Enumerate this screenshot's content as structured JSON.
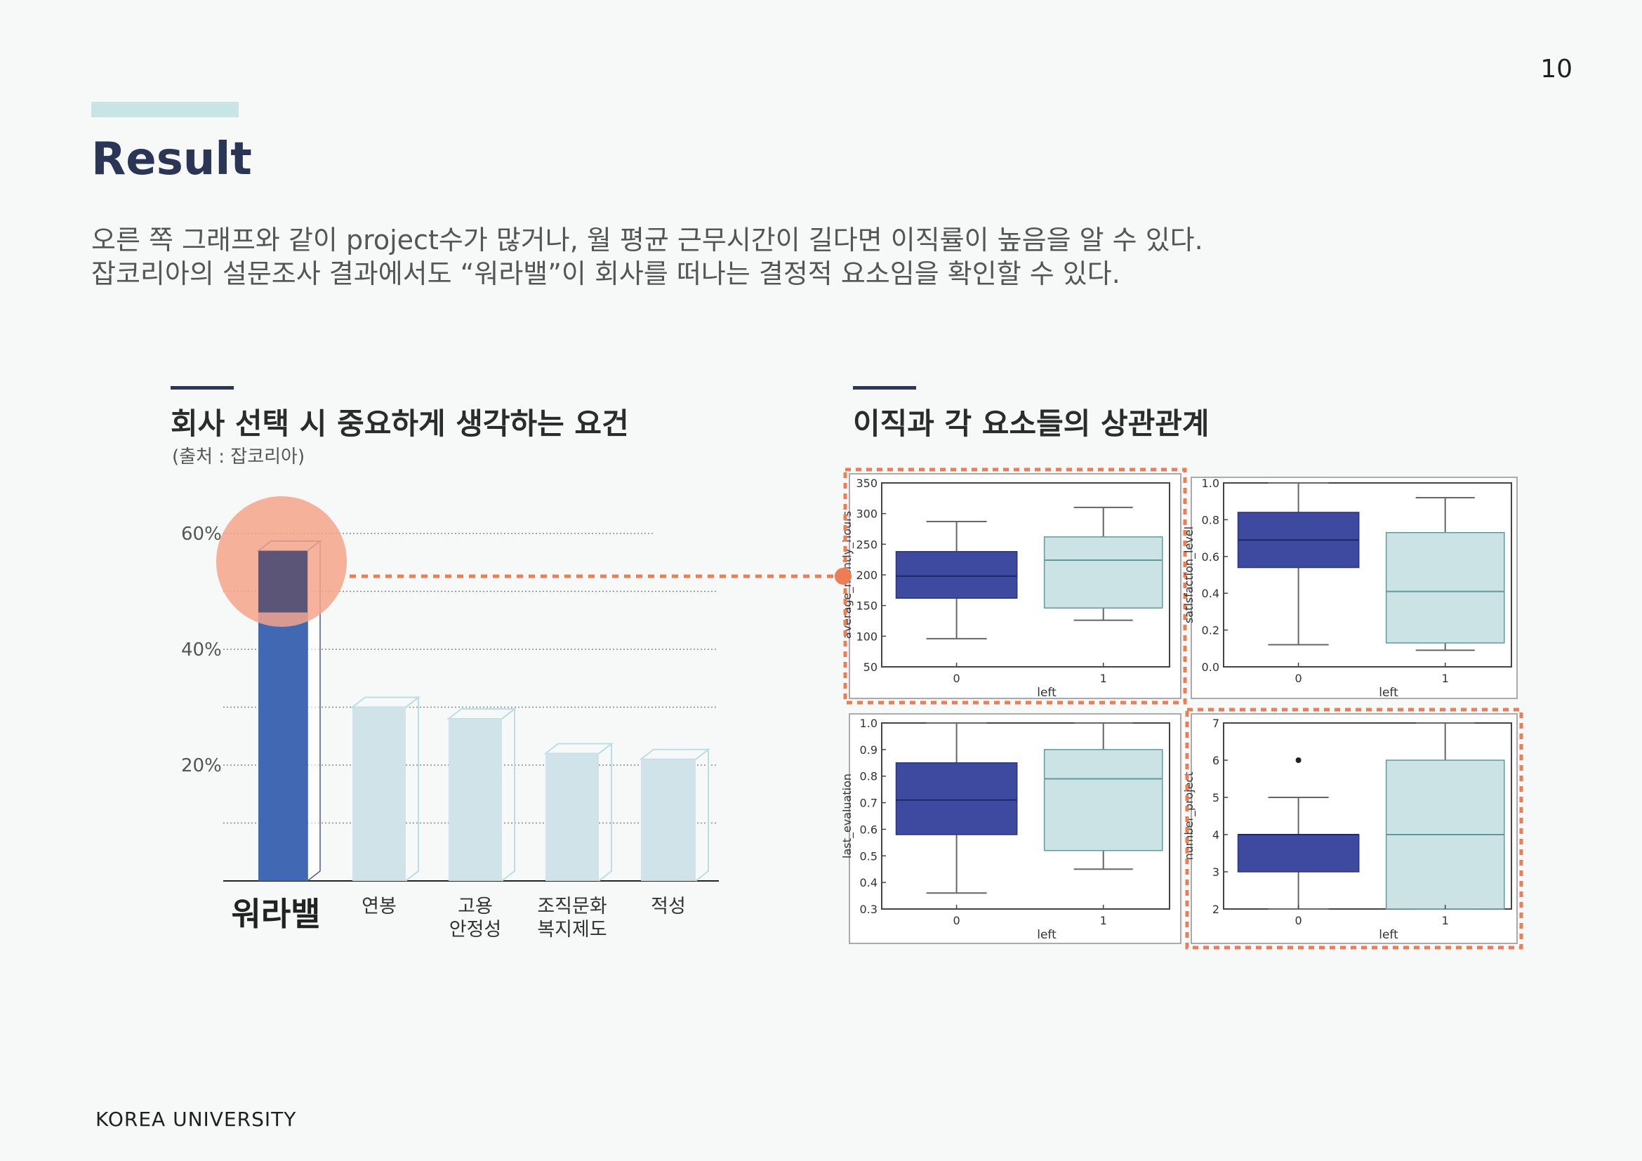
{
  "page_number": "10",
  "title": "Result",
  "description": {
    "line1": "오른 쪽 그래프와 같이 project수가 많거나, 월 평균 근무시간이 길다면 이직률이 높음을 알 수 있다.",
    "line2": "잡코리아의 설문조사 결과에서도 “워라밸”이 회사를 떠나는 결정적 요소임을 확인할 수 있다."
  },
  "left_section": {
    "title": "회사 선택 시 중요하게 생각하는 요건",
    "source": "(출처 : 잡코리아)"
  },
  "right_section": {
    "title": "이직과 각 요소들의 상관관계"
  },
  "footer": "KOREA UNIVERSITY",
  "colors": {
    "highlight_bar": "#4169b3",
    "other_bars": "#cfe3e8",
    "circle": "#f4a588",
    "dotted_connector": "#ef7d54",
    "box_left0": "#3d4aa0",
    "box_left1": "#cce3e6",
    "title": "#2b3555"
  },
  "chart_data": [
    {
      "type": "bar",
      "title": "회사 선택 시 중요하게 생각하는 요건",
      "categories": [
        "워라밸",
        "연봉",
        "고용\n안정성",
        "조직문화\n복지제도",
        "적성"
      ],
      "values": [
        57,
        30,
        28,
        22,
        21
      ],
      "yticks": [
        "20%",
        "40%",
        "60%"
      ],
      "ylim": [
        0,
        60
      ],
      "highlight": "워라밸"
    },
    {
      "type": "box",
      "xlabel": "left",
      "ylabel": "average_montly_hours",
      "categories": [
        "0",
        "1"
      ],
      "yticks": [
        "50",
        "100",
        "150",
        "200",
        "250",
        "300",
        "350"
      ],
      "ylim": [
        50,
        350
      ],
      "boxes": [
        {
          "min": 96,
          "q1": 162,
          "median": 198,
          "q3": 238,
          "max": 287
        },
        {
          "min": 126,
          "q1": 146,
          "median": 224,
          "q3": 262,
          "max": 310
        }
      ],
      "highlighted": true
    },
    {
      "type": "box",
      "xlabel": "left",
      "ylabel": "satisfaction_level",
      "categories": [
        "0",
        "1"
      ],
      "yticks": [
        "0.0",
        "0.2",
        "0.4",
        "0.6",
        "0.8",
        "1.0"
      ],
      "ylim": [
        0,
        1
      ],
      "boxes": [
        {
          "min": 0.12,
          "q1": 0.54,
          "median": 0.69,
          "q3": 0.84,
          "max": 1.0
        },
        {
          "min": 0.09,
          "q1": 0.13,
          "median": 0.41,
          "q3": 0.73,
          "max": 0.92
        }
      ],
      "highlighted": false
    },
    {
      "type": "box",
      "xlabel": "left",
      "ylabel": "last_evaluation",
      "categories": [
        "0",
        "1"
      ],
      "yticks": [
        "0.3",
        "0.4",
        "0.5",
        "0.6",
        "0.7",
        "0.8",
        "0.9",
        "1.0"
      ],
      "ylim": [
        0.3,
        1.0
      ],
      "boxes": [
        {
          "min": 0.36,
          "q1": 0.58,
          "median": 0.71,
          "q3": 0.85,
          "max": 1.0
        },
        {
          "min": 0.45,
          "q1": 0.52,
          "median": 0.79,
          "q3": 0.9,
          "max": 1.0
        }
      ],
      "highlighted": false
    },
    {
      "type": "box",
      "xlabel": "left",
      "ylabel": "number_project",
      "categories": [
        "0",
        "1"
      ],
      "yticks": [
        "2",
        "3",
        "4",
        "5",
        "6",
        "7"
      ],
      "ylim": [
        2,
        7
      ],
      "boxes": [
        {
          "min": 2,
          "q1": 3,
          "median": 4,
          "q3": 4,
          "max": 5,
          "outliers": [
            6
          ]
        },
        {
          "min": 2,
          "q1": 2,
          "median": 4,
          "q3": 6,
          "max": 7
        }
      ],
      "highlighted": true
    }
  ]
}
